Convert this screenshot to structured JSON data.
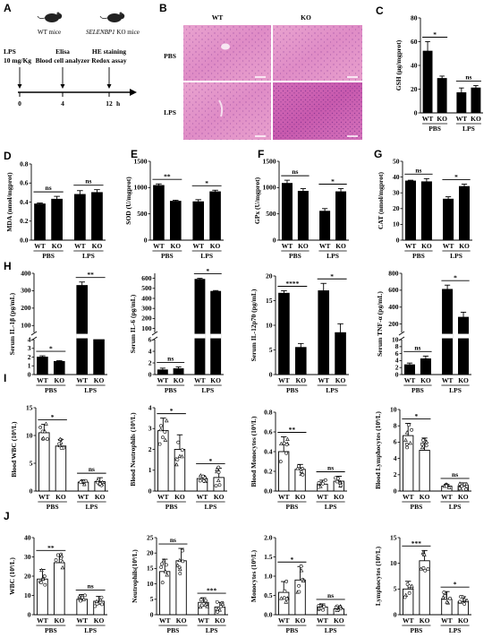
{
  "panelA": {
    "letter": "A",
    "wt_label": "WT mice",
    "ko_label_gene": "SELENBP1",
    "ko_label_rest": " KO mice",
    "steps": [
      {
        "line1": "LPS",
        "line2": "10 mg/Kg",
        "t": "0"
      },
      {
        "line1": "Elisa",
        "line2": "Blood cell analyzer",
        "t": "4"
      },
      {
        "line1": "HE staining",
        "line2": "Redox assay",
        "t": "12"
      }
    ],
    "unit": "h"
  },
  "panelB": {
    "letter": "B",
    "cols": [
      "WT",
      "KO"
    ],
    "rows": [
      "PBS",
      "LPS"
    ]
  },
  "chart_data": [
    {
      "id": "C",
      "type": "bar",
      "ylabel": "GSH (μg/mgprot)",
      "ylim": [
        0,
        80
      ],
      "ticks": [
        "0",
        "20",
        "40",
        "60",
        "80"
      ],
      "categories": [
        "WT",
        "KO",
        "WT",
        "KO"
      ],
      "values": [
        52,
        29,
        17,
        21
      ],
      "errors": [
        8,
        2,
        4,
        2
      ],
      "groups": [
        "PBS",
        "LPS"
      ],
      "sig": [
        {
          "from": 0,
          "to": 1,
          "text": "*"
        },
        {
          "from": 2,
          "to": 3,
          "text": "ns"
        }
      ]
    },
    {
      "id": "D",
      "type": "bar",
      "ylabel": "MDA (nmol/mgprot)",
      "ylim": [
        0,
        0.8
      ],
      "ticks": [
        "0.0",
        "0.2",
        "0.4",
        "0.6",
        "0.8"
      ],
      "categories": [
        "WT",
        "KO",
        "WT",
        "KO"
      ],
      "values": [
        0.38,
        0.43,
        0.48,
        0.5
      ],
      "errors": [
        0.01,
        0.03,
        0.04,
        0.03
      ],
      "groups": [
        "PBS",
        "LPS"
      ],
      "sig": [
        {
          "from": 0,
          "to": 1,
          "text": "ns"
        },
        {
          "from": 2,
          "to": 3,
          "text": "ns"
        }
      ]
    },
    {
      "id": "E",
      "type": "bar",
      "ylabel": "SOD (U/mgprot)",
      "ylim": [
        0,
        1500
      ],
      "ticks": [
        "0",
        "500",
        "1000",
        "1500"
      ],
      "categories": [
        "WT",
        "KO",
        "WT",
        "KO"
      ],
      "values": [
        1040,
        740,
        730,
        920
      ],
      "errors": [
        30,
        20,
        40,
        30
      ],
      "groups": [
        "PBS",
        "LPS"
      ],
      "sig": [
        {
          "from": 0,
          "to": 1,
          "text": "**"
        },
        {
          "from": 2,
          "to": 3,
          "text": "*"
        }
      ]
    },
    {
      "id": "F",
      "type": "bar",
      "ylabel": "GPx (U/mgprot)",
      "ylim": [
        0,
        1500
      ],
      "ticks": [
        "0",
        "500",
        "1000",
        "1500"
      ],
      "categories": [
        "WT",
        "KO",
        "WT",
        "KO"
      ],
      "values": [
        1080,
        930,
        550,
        920
      ],
      "errors": [
        60,
        50,
        50,
        60
      ],
      "groups": [
        "PBS",
        "LPS"
      ],
      "sig": [
        {
          "from": 0,
          "to": 1,
          "text": "ns"
        },
        {
          "from": 2,
          "to": 3,
          "text": "*"
        }
      ]
    },
    {
      "id": "G",
      "type": "bar",
      "ylabel": "CAT (nmol/mgprot)",
      "ylim": [
        0,
        50
      ],
      "ticks": [
        "0",
        "10",
        "20",
        "30",
        "40",
        "50"
      ],
      "categories": [
        "WT",
        "KO",
        "WT",
        "KO"
      ],
      "values": [
        37.5,
        37,
        26,
        34
      ],
      "errors": [
        0.5,
        2,
        1.5,
        1.5
      ],
      "groups": [
        "PBS",
        "LPS"
      ],
      "sig": [
        {
          "from": 0,
          "to": 1,
          "text": "ns"
        },
        {
          "from": 2,
          "to": 3,
          "text": "*"
        }
      ]
    },
    {
      "id": "H1",
      "type": "bar",
      "broken": true,
      "ylabel": "Serum IL-1β (pg/mL)",
      "lowTicks": [
        "0",
        "1",
        "2",
        "3",
        "4"
      ],
      "lowLim": [
        0,
        4
      ],
      "highTicks": [
        "100",
        "200",
        "300",
        "400"
      ],
      "highLim": [
        60,
        400
      ],
      "categories": [
        "WT",
        "KO",
        "WT",
        "KO"
      ],
      "values": [
        2.0,
        1.5,
        330,
        4
      ],
      "errors": [
        0.15,
        0.1,
        20,
        0.3
      ],
      "groups": [
        "PBS",
        "LPS"
      ],
      "sig": [
        {
          "from": 0,
          "to": 1,
          "text": "*",
          "zone": "low"
        },
        {
          "from": 2,
          "to": 3,
          "text": "**",
          "zone": "high"
        }
      ]
    },
    {
      "id": "H2",
      "type": "bar",
      "broken": true,
      "ylabel": "Serum IL-6 (pg/mL)",
      "lowTicks": [
        "0",
        "2",
        "4",
        "6"
      ],
      "lowLim": [
        0,
        6
      ],
      "highTicks": [
        "100",
        "200",
        "300",
        "400",
        "500",
        "600"
      ],
      "highLim": [
        60,
        650
      ],
      "categories": [
        "WT",
        "KO",
        "WT",
        "KO"
      ],
      "values": [
        0.8,
        1.0,
        590,
        470
      ],
      "errors": [
        0.3,
        0.3,
        10,
        8
      ],
      "groups": [
        "PBS",
        "LPS"
      ],
      "sig": [
        {
          "from": 0,
          "to": 1,
          "text": "ns",
          "zone": "low"
        },
        {
          "from": 2,
          "to": 3,
          "text": "*",
          "zone": "high"
        }
      ]
    },
    {
      "id": "H3",
      "type": "bar",
      "broken": false,
      "ylabel": "Serum IL-12p70 (pg/mL)",
      "ylim": [
        0,
        20
      ],
      "ticks": [
        "0",
        "5",
        "10",
        "15",
        "20"
      ],
      "categories": [
        "WT",
        "KO",
        "WT",
        "KO"
      ],
      "values": [
        16.5,
        5.5,
        17,
        8.5
      ],
      "errors": [
        0.5,
        0.8,
        1.5,
        1.8
      ],
      "groups": [
        "PBS",
        "LPS"
      ],
      "sig": [
        {
          "from": 0,
          "to": 1,
          "text": "****"
        },
        {
          "from": 2,
          "to": 3,
          "text": "*"
        }
      ]
    },
    {
      "id": "H4",
      "type": "bar",
      "broken": true,
      "ylabel": "Serum TNF-α (pg/mL)",
      "lowTicks": [
        "0",
        "2",
        "4",
        "6",
        "8",
        "10"
      ],
      "lowLim": [
        0,
        10
      ],
      "highTicks": [
        "200",
        "400",
        "600",
        "800"
      ],
      "highLim": [
        100,
        800
      ],
      "categories": [
        "WT",
        "KO",
        "WT",
        "KO"
      ],
      "values": [
        2.8,
        4.5,
        610,
        280
      ],
      "errors": [
        0.5,
        0.8,
        50,
        60
      ],
      "groups": [
        "PBS",
        "LPS"
      ],
      "sig": [
        {
          "from": 0,
          "to": 1,
          "text": "ns",
          "zone": "low"
        },
        {
          "from": 2,
          "to": 3,
          "text": "*",
          "zone": "high"
        }
      ]
    },
    {
      "id": "I1",
      "type": "bar",
      "dots": true,
      "ylabel": "Blood WBC (10⁹/L)",
      "ylim": [
        0,
        15
      ],
      "ticks": [
        "0",
        "5",
        "10",
        "15"
      ],
      "categories": [
        "WT",
        "KO",
        "WT",
        "KO"
      ],
      "values": [
        10.5,
        8.1,
        1.6,
        1.7
      ],
      "errors": [
        1.5,
        1.2,
        0.4,
        0.7
      ],
      "groups": [
        "PBS",
        "LPS"
      ],
      "sig": [
        {
          "from": 0,
          "to": 1,
          "text": "*"
        },
        {
          "from": 2,
          "to": 3,
          "text": "ns"
        }
      ]
    },
    {
      "id": "I2",
      "type": "bar",
      "dots": true,
      "ylabel": "Blood Neutrophils (10⁹/L)",
      "ylim": [
        0,
        4
      ],
      "ticks": [
        "0",
        "1",
        "2",
        "3",
        "4"
      ],
      "categories": [
        "WT",
        "KO",
        "WT",
        "KO"
      ],
      "values": [
        2.9,
        2.0,
        0.6,
        0.65
      ],
      "errors": [
        0.6,
        0.7,
        0.15,
        0.45
      ],
      "groups": [
        "PBS",
        "LPS"
      ],
      "sig": [
        {
          "from": 0,
          "to": 1,
          "text": "*"
        },
        {
          "from": 2,
          "to": 3,
          "text": "*"
        }
      ]
    },
    {
      "id": "I3",
      "type": "bar",
      "dots": true,
      "ylabel": "Blood Monocytes (10⁹/L)",
      "ylim": [
        0,
        0.8
      ],
      "ticks": [
        "0.0",
        "0.2",
        "0.4",
        "0.6",
        "0.8"
      ],
      "categories": [
        "WT",
        "KO",
        "WT",
        "KO"
      ],
      "values": [
        0.4,
        0.22,
        0.07,
        0.1
      ],
      "errors": [
        0.15,
        0.05,
        0.04,
        0.05
      ],
      "groups": [
        "PBS",
        "LPS"
      ],
      "sig": [
        {
          "from": 0,
          "to": 1,
          "text": "**"
        },
        {
          "from": 2,
          "to": 3,
          "text": "ns"
        }
      ]
    },
    {
      "id": "I4",
      "type": "bar",
      "dots": true,
      "ylabel": "Blood Lymphocytes (10⁹/L)",
      "ylim": [
        0,
        10
      ],
      "ticks": [
        "0",
        "2",
        "4",
        "6",
        "8",
        "10"
      ],
      "categories": [
        "WT",
        "KO",
        "WT",
        "KO"
      ],
      "values": [
        6.8,
        5.0,
        0.6,
        0.6
      ],
      "errors": [
        1.5,
        1.5,
        0.2,
        0.4
      ],
      "groups": [
        "PBS",
        "LPS"
      ],
      "sig": [
        {
          "from": 0,
          "to": 1,
          "text": "*"
        },
        {
          "from": 2,
          "to": 3,
          "text": "ns"
        }
      ]
    },
    {
      "id": "J1",
      "type": "bar",
      "dots": true,
      "ylabel": "WBC (10⁹/L)",
      "ylim": [
        0,
        40
      ],
      "ticks": [
        "0",
        "10",
        "20",
        "30",
        "40"
      ],
      "categories": [
        "WT",
        "KO",
        "WT",
        "KO"
      ],
      "values": [
        18.5,
        27,
        8,
        7
      ],
      "errors": [
        5,
        4,
        2.5,
        2.5
      ],
      "groups": [
        "PBS",
        "LPS"
      ],
      "sig": [
        {
          "from": 0,
          "to": 1,
          "text": "**"
        },
        {
          "from": 2,
          "to": 3,
          "text": "ns"
        }
      ]
    },
    {
      "id": "J2",
      "type": "bar",
      "dots": true,
      "ylabel": "Neutrophils(10⁹/L)",
      "ylim": [
        0,
        25
      ],
      "ticks": [
        "0",
        "5",
        "10",
        "15",
        "20",
        "25"
      ],
      "categories": [
        "WT",
        "KO",
        "WT",
        "KO"
      ],
      "values": [
        14,
        17.5,
        4,
        2.5
      ],
      "errors": [
        4,
        4,
        1.5,
        1.5
      ],
      "groups": [
        "PBS",
        "LPS"
      ],
      "sig": [
        {
          "from": 0,
          "to": 1,
          "text": "ns"
        },
        {
          "from": 2,
          "to": 3,
          "text": "***"
        }
      ]
    },
    {
      "id": "J3",
      "type": "bar",
      "dots": true,
      "ylabel": "Monocytes (10⁹/L)",
      "ylim": [
        0,
        2.0
      ],
      "ticks": [
        "0.0",
        "0.5",
        "1.0",
        "1.5",
        "2.0"
      ],
      "categories": [
        "WT",
        "KO",
        "WT",
        "KO"
      ],
      "values": [
        0.58,
        0.9,
        0.2,
        0.15
      ],
      "errors": [
        0.28,
        0.35,
        0.08,
        0.07
      ],
      "groups": [
        "PBS",
        "LPS"
      ],
      "sig": [
        {
          "from": 0,
          "to": 1,
          "text": "*"
        },
        {
          "from": 2,
          "to": 3,
          "text": "ns"
        }
      ]
    },
    {
      "id": "J4",
      "type": "bar",
      "dots": true,
      "ylabel": "Lymphocytes (10⁹/L)",
      "ylim": [
        0,
        15
      ],
      "ticks": [
        "0",
        "5",
        "10",
        "15"
      ],
      "categories": [
        "WT",
        "KO",
        "WT",
        "KO"
      ],
      "values": [
        5,
        10.5,
        3,
        2.5
      ],
      "errors": [
        1.5,
        2,
        1.5,
        1
      ],
      "groups": [
        "PBS",
        "LPS"
      ],
      "sig": [
        {
          "from": 0,
          "to": 1,
          "text": "***"
        },
        {
          "from": 2,
          "to": 3,
          "text": "*"
        }
      ]
    }
  ]
}
